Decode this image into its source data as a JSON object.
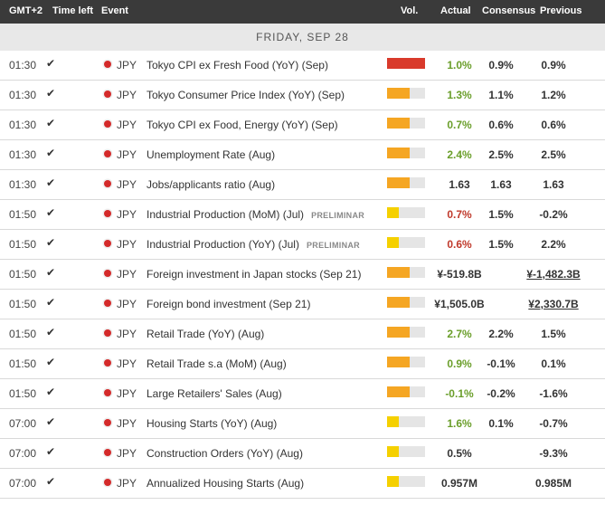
{
  "header": {
    "timezone": "GMT+2",
    "time_left": "Time left",
    "event": "Event",
    "vol": "Vol.",
    "actual": "Actual",
    "consensus": "Consensus",
    "previous": "Previous"
  },
  "day_label": "FRIDAY, SEP 28",
  "colors": {
    "vol_high": "#d93a2b",
    "vol_med": "#f5a623",
    "vol_low": "#f5d000"
  },
  "rows": [
    {
      "time": "01:30",
      "currency": "JPY",
      "event": "Tokyo CPI ex Fresh Food (YoY) (Sep)",
      "prelim": "",
      "vol": "high",
      "vol_fraction": 1.0,
      "actual": "1.0%",
      "actual_color": "green",
      "consensus": "0.9%",
      "previous": "0.9%",
      "actual_ul": false,
      "prev_ul": false
    },
    {
      "time": "01:30",
      "currency": "JPY",
      "event": "Tokyo Consumer Price Index (YoY) (Sep)",
      "prelim": "",
      "vol": "med",
      "vol_fraction": 0.6,
      "actual": "1.3%",
      "actual_color": "green",
      "consensus": "1.1%",
      "previous": "1.2%",
      "actual_ul": false,
      "prev_ul": false
    },
    {
      "time": "01:30",
      "currency": "JPY",
      "event": "Tokyo CPI ex Food, Energy (YoY) (Sep)",
      "prelim": "",
      "vol": "med",
      "vol_fraction": 0.6,
      "actual": "0.7%",
      "actual_color": "green",
      "consensus": "0.6%",
      "previous": "0.6%",
      "actual_ul": false,
      "prev_ul": false
    },
    {
      "time": "01:30",
      "currency": "JPY",
      "event": "Unemployment Rate (Aug)",
      "prelim": "",
      "vol": "med",
      "vol_fraction": 0.6,
      "actual": "2.4%",
      "actual_color": "green",
      "consensus": "2.5%",
      "previous": "2.5%",
      "actual_ul": false,
      "prev_ul": false
    },
    {
      "time": "01:30",
      "currency": "JPY",
      "event": "Jobs/applicants ratio (Aug)",
      "prelim": "",
      "vol": "med",
      "vol_fraction": 0.6,
      "actual": "1.63",
      "actual_color": "black",
      "consensus": "1.63",
      "previous": "1.63",
      "actual_ul": false,
      "prev_ul": false
    },
    {
      "time": "01:50",
      "currency": "JPY",
      "event": "Industrial Production (MoM) (Jul)",
      "prelim": "PRELIMINAR",
      "vol": "low",
      "vol_fraction": 0.3,
      "actual": "0.7%",
      "actual_color": "red",
      "consensus": "1.5%",
      "previous": "-0.2%",
      "actual_ul": false,
      "prev_ul": false
    },
    {
      "time": "01:50",
      "currency": "JPY",
      "event": "Industrial Production (YoY) (Jul)",
      "prelim": "PRELIMINAR",
      "vol": "low",
      "vol_fraction": 0.3,
      "actual": "0.6%",
      "actual_color": "red",
      "consensus": "1.5%",
      "previous": "2.2%",
      "actual_ul": false,
      "prev_ul": false
    },
    {
      "time": "01:50",
      "currency": "JPY",
      "event": "Foreign investment in Japan stocks (Sep 21)",
      "prelim": "",
      "vol": "med",
      "vol_fraction": 0.6,
      "actual": "¥-519.8B",
      "actual_color": "black",
      "consensus": "",
      "previous": "¥-1,482.3B",
      "actual_ul": false,
      "prev_ul": true
    },
    {
      "time": "01:50",
      "currency": "JPY",
      "event": "Foreign bond investment (Sep 21)",
      "prelim": "",
      "vol": "med",
      "vol_fraction": 0.6,
      "actual": "¥1,505.0B",
      "actual_color": "black",
      "consensus": "",
      "previous": "¥2,330.7B",
      "actual_ul": false,
      "prev_ul": true
    },
    {
      "time": "01:50",
      "currency": "JPY",
      "event": "Retail Trade (YoY) (Aug)",
      "prelim": "",
      "vol": "med",
      "vol_fraction": 0.6,
      "actual": "2.7%",
      "actual_color": "green",
      "consensus": "2.2%",
      "previous": "1.5%",
      "actual_ul": false,
      "prev_ul": false
    },
    {
      "time": "01:50",
      "currency": "JPY",
      "event": "Retail Trade s.a (MoM) (Aug)",
      "prelim": "",
      "vol": "med",
      "vol_fraction": 0.6,
      "actual": "0.9%",
      "actual_color": "green",
      "consensus": "-0.1%",
      "previous": "0.1%",
      "actual_ul": false,
      "prev_ul": false
    },
    {
      "time": "01:50",
      "currency": "JPY",
      "event": "Large Retailers' Sales (Aug)",
      "prelim": "",
      "vol": "med",
      "vol_fraction": 0.6,
      "actual": "-0.1%",
      "actual_color": "green",
      "consensus": "-0.2%",
      "previous": "-1.6%",
      "actual_ul": false,
      "prev_ul": false
    },
    {
      "time": "07:00",
      "currency": "JPY",
      "event": "Housing Starts (YoY) (Aug)",
      "prelim": "",
      "vol": "low",
      "vol_fraction": 0.3,
      "actual": "1.6%",
      "actual_color": "green",
      "consensus": "0.1%",
      "previous": "-0.7%",
      "actual_ul": false,
      "prev_ul": false
    },
    {
      "time": "07:00",
      "currency": "JPY",
      "event": "Construction Orders (YoY) (Aug)",
      "prelim": "",
      "vol": "low",
      "vol_fraction": 0.3,
      "actual": "0.5%",
      "actual_color": "black",
      "consensus": "",
      "previous": "-9.3%",
      "actual_ul": false,
      "prev_ul": false
    },
    {
      "time": "07:00",
      "currency": "JPY",
      "event": "Annualized Housing Starts (Aug)",
      "prelim": "",
      "vol": "low",
      "vol_fraction": 0.3,
      "actual": "0.957M",
      "actual_color": "black",
      "consensus": "",
      "previous": "0.985M",
      "actual_ul": false,
      "prev_ul": false
    }
  ]
}
